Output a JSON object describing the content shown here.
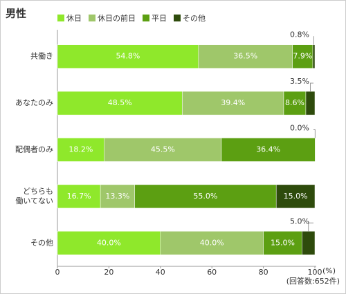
{
  "chart_data": {
    "type": "stacked-barh",
    "title": "男性",
    "categories": [
      "共働き",
      "あなたのみ",
      "配偶者のみ",
      "どちらも\n働いてない",
      "その他"
    ],
    "series": [
      {
        "name": "休日",
        "color": "#8fe82b",
        "values": [
          54.8,
          48.5,
          18.2,
          16.7,
          40.0
        ],
        "value_labels": [
          "54.8%",
          "48.5%",
          "18.2%",
          "16.7%",
          "40.0%"
        ]
      },
      {
        "name": "休日の前日",
        "color": "#9fc76a",
        "values": [
          36.5,
          39.4,
          45.5,
          13.3,
          40.0
        ],
        "value_labels": [
          "36.5%",
          "39.4%",
          "45.5%",
          "13.3%",
          "40.0%"
        ]
      },
      {
        "name": "平日",
        "color": "#5c9f12",
        "values": [
          7.9,
          8.6,
          36.4,
          55.0,
          15.0
        ],
        "value_labels": [
          "7.9%",
          "8.6%",
          "36.4%",
          "55.0%",
          "15.0%"
        ]
      },
      {
        "name": "その他",
        "color": "#2e4b0c",
        "values": [
          0.8,
          3.5,
          0.0,
          15.0,
          5.0
        ],
        "value_labels": [
          "0.8%",
          "3.5%",
          "0.0%",
          "15.0%",
          "5.0%"
        ]
      }
    ],
    "xlim": [
      0,
      100
    ],
    "xticks": [
      0,
      20,
      40,
      60,
      80,
      100
    ],
    "unit": "(%)",
    "note": "(回答数:652件)"
  }
}
